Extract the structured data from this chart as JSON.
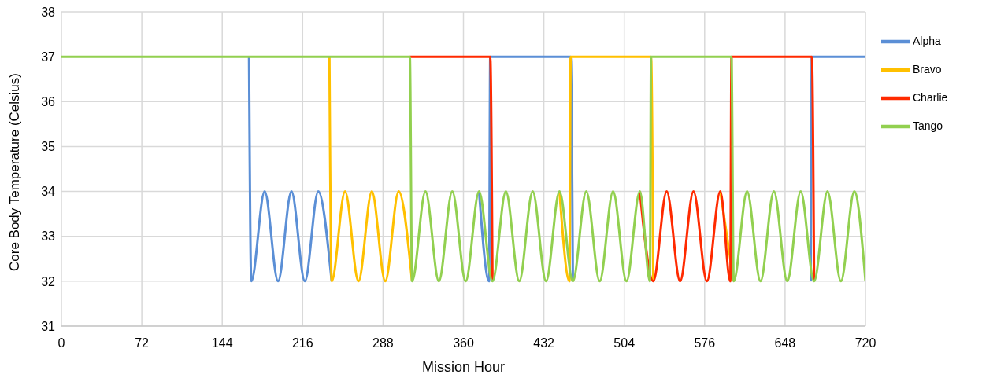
{
  "chart_data": {
    "type": "line",
    "xlabel": "Mission Hour",
    "ylabel": "Core Body Temperature (Celsius)",
    "xlim": [
      0,
      720
    ],
    "xticks": [
      0,
      72,
      144,
      216,
      288,
      360,
      432,
      504,
      576,
      648,
      720
    ],
    "ylim": [
      31,
      38
    ],
    "yticks": [
      31,
      32,
      33,
      34,
      35,
      36,
      37,
      38
    ],
    "grid": true,
    "legend": "top right",
    "marker": "none",
    "line_style": "solid",
    "series": [
      {
        "name": "Alpha",
        "color": "#5b8fd6",
        "x": [
          168,
          170,
          182,
          194,
          206,
          218,
          230,
          242,
          254,
          266,
          278,
          290,
          302,
          314,
          326,
          338,
          350,
          362,
          374,
          383,
          384,
          456,
          458,
          470,
          482,
          494,
          506,
          518,
          530,
          542,
          554,
          566,
          578,
          590,
          602,
          614,
          626,
          638,
          650,
          662,
          671,
          672,
          720
        ],
        "values": [
          37,
          32,
          34,
          32,
          34,
          32,
          34,
          32,
          null,
          null,
          null,
          null,
          null,
          null,
          null,
          null,
          null,
          null,
          34,
          32,
          37,
          37,
          32,
          null,
          null,
          null,
          null,
          null,
          null,
          null,
          null,
          null,
          null,
          null,
          null,
          null,
          null,
          null,
          null,
          null,
          32,
          37,
          37
        ]
      },
      {
        "name": "Bravo",
        "color": "#ffc000",
        "x": [
          240,
          242,
          254,
          266,
          278,
          290,
          302,
          314,
          326,
          338,
          350,
          362,
          374,
          386,
          398,
          410,
          422,
          434,
          446,
          455,
          456,
          528,
          530,
          542,
          554,
          566,
          578,
          590,
          602
        ],
        "values": [
          37,
          32,
          34,
          32,
          34,
          32,
          34,
          32,
          null,
          null,
          null,
          null,
          null,
          null,
          null,
          null,
          null,
          null,
          34,
          32,
          37,
          37,
          32,
          null,
          null,
          null,
          null,
          34,
          32
        ]
      },
      {
        "name": "Charlie",
        "color": "#ff2a00",
        "x": [
          312,
          384,
          386,
          398,
          410,
          422,
          434,
          446,
          458,
          470,
          482,
          494,
          506,
          518,
          530,
          542,
          554,
          566,
          578,
          590,
          599,
          600,
          672,
          674
        ],
        "values": [
          37,
          37,
          32,
          null,
          null,
          null,
          null,
          null,
          null,
          null,
          null,
          null,
          null,
          34,
          32,
          34,
          32,
          34,
          32,
          34,
          32,
          37,
          37,
          32
        ]
      },
      {
        "name": "Tango",
        "color": "#92d050",
        "x": [
          0,
          312,
          314,
          326,
          338,
          350,
          362,
          374,
          386,
          398,
          410,
          422,
          434,
          446,
          458,
          470,
          482,
          494,
          506,
          518,
          527,
          528,
          600,
          602,
          614,
          626,
          638,
          650,
          662,
          674,
          686,
          698,
          710,
          720
        ],
        "values": [
          37,
          37,
          32,
          34,
          32,
          34,
          32,
          34,
          32,
          34,
          32,
          34,
          32,
          34,
          32,
          34,
          32,
          34,
          32,
          34,
          32,
          37,
          37,
          32,
          34,
          32,
          34,
          32,
          34,
          32,
          34,
          32,
          34,
          32
        ]
      }
    ]
  }
}
